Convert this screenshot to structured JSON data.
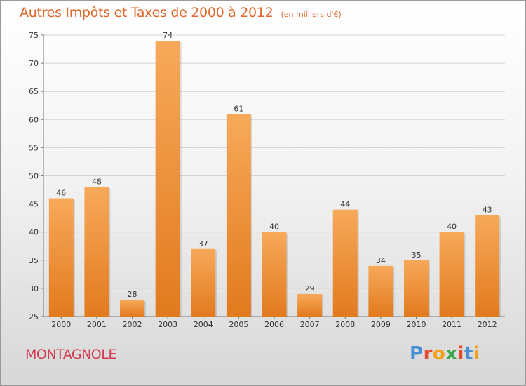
{
  "header": {
    "title": "Autres Impôts et Taxes de 2000 à 2012",
    "subtitle": "(en milliers d'€)"
  },
  "footer": {
    "commune": "MONTAGNOLE",
    "logo_text": "Proxiti"
  },
  "colors": {
    "bar_light": "#f7a95a",
    "bar_dark": "#e27a1e",
    "title": "#e0672a",
    "commune": "#d33b53",
    "logo_letters": [
      "#4a8fd6",
      "#e94b2f",
      "#f2a21a",
      "#3aa84a",
      "#e94b2f",
      "#4a8fd6",
      "#f2a21a"
    ]
  },
  "chart_data": {
    "type": "bar",
    "title": "Autres Impôts et Taxes de 2000 à 2012",
    "subtitle": "(en milliers d'€)",
    "categories": [
      "2000",
      "2001",
      "2002",
      "2003",
      "2004",
      "2005",
      "2006",
      "2007",
      "2008",
      "2009",
      "2010",
      "2011",
      "2012"
    ],
    "values": [
      46,
      48,
      28,
      74,
      37,
      61,
      40,
      29,
      44,
      34,
      35,
      40,
      43
    ],
    "ylim": [
      25,
      75
    ],
    "yticks": [
      25,
      30,
      35,
      40,
      45,
      50,
      55,
      60,
      65,
      70,
      75
    ],
    "grid": true,
    "xlabel": "",
    "ylabel": ""
  }
}
